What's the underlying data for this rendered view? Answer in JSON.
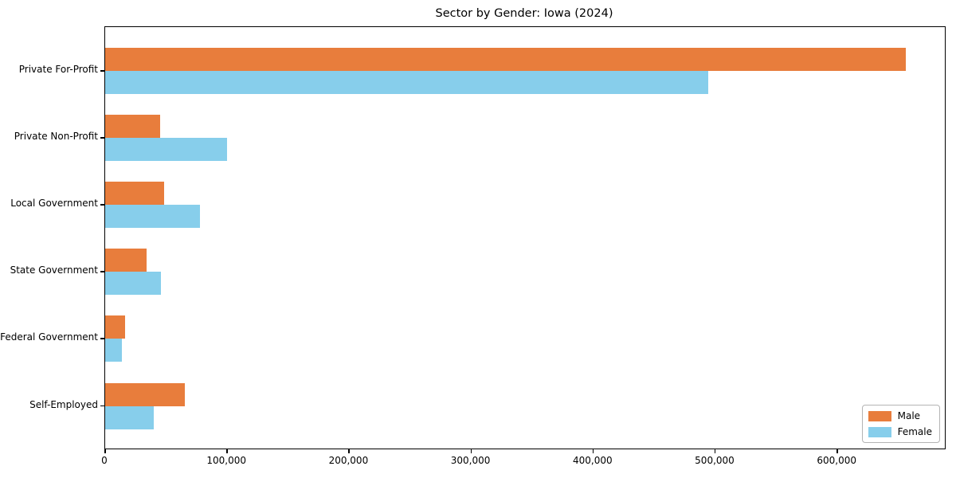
{
  "window": {
    "title": "Sector by Gender: Iowa (2024)"
  },
  "colors": {
    "male_bar": "#e87d3c",
    "female_bar": "#87ceeb",
    "axis": "#000000",
    "background": "#ffffff",
    "legend_border": "#b4b4b4"
  },
  "chart_data": {
    "type": "bar",
    "orientation": "horizontal",
    "title": "Sector by Gender: Iowa (2024)",
    "categories": [
      "Private For-Profit",
      "Private Non-Profit",
      "Local Government",
      "State Government",
      "Federal Government",
      "Self-Employed"
    ],
    "series": [
      {
        "name": "Male",
        "color": "#e87d3c",
        "values": [
          656000,
          45000,
          48000,
          34000,
          16000,
          65000
        ]
      },
      {
        "name": "Female",
        "color": "#87ceeb",
        "values": [
          494000,
          100000,
          78000,
          46000,
          14000,
          40000
        ]
      }
    ],
    "xlabel": "",
    "ylabel": "",
    "xlim": [
      0,
      688000
    ],
    "x_ticks": [
      0,
      100000,
      200000,
      300000,
      400000,
      500000,
      600000
    ],
    "x_tick_labels": [
      "0",
      "100,000",
      "200,000",
      "300,000",
      "400,000",
      "500,000",
      "600,000"
    ],
    "grid": false,
    "legend": {
      "position": "lower right",
      "entries": [
        "Male",
        "Female"
      ]
    }
  }
}
